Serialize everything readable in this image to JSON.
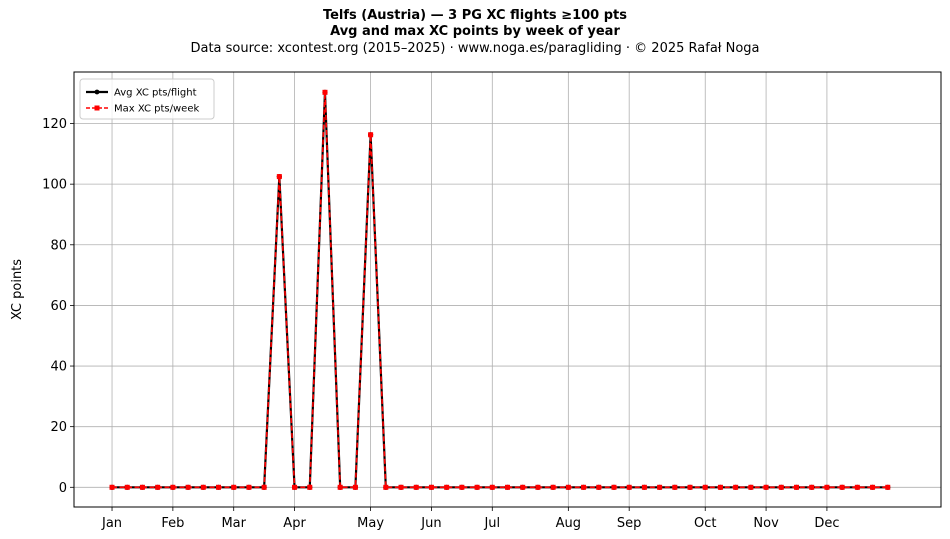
{
  "title_line1": "Telfs (Austria)  —  3 PG XC flights ≥100 pts",
  "title_line2": "Avg and max XC points by week of year",
  "subtitle": "Data source: xcontest.org (2015–2025)  ·  www.noga.es/paragliding  ·  © 2025 Rafał Noga",
  "chart_data": {
    "type": "line",
    "title": "Telfs (Austria)  —  3 PG XC flights ≥100 pts",
    "subtitle": "Avg and max XC points by week of year",
    "xlabel": "",
    "ylabel": "XC points",
    "x_ticks": [
      {
        "label": "Jan",
        "week": 1
      },
      {
        "label": "Feb",
        "week": 5
      },
      {
        "label": "Mar",
        "week": 9
      },
      {
        "label": "Apr",
        "week": 13
      },
      {
        "label": "May",
        "week": 18
      },
      {
        "label": "Jun",
        "week": 22
      },
      {
        "label": "Jul",
        "week": 26
      },
      {
        "label": "Aug",
        "week": 31
      },
      {
        "label": "Sep",
        "week": 35
      },
      {
        "label": "Oct",
        "week": 40
      },
      {
        "label": "Nov",
        "week": 44
      },
      {
        "label": "Dec",
        "week": 48
      }
    ],
    "y_ticks": [
      0,
      20,
      40,
      60,
      80,
      100,
      120
    ],
    "xlim": [
      -1.5,
      55.5
    ],
    "ylim": [
      -6.5,
      137
    ],
    "grid": true,
    "legend_position": "top-left",
    "x": [
      1,
      2,
      3,
      4,
      5,
      6,
      7,
      8,
      9,
      10,
      11,
      12,
      13,
      14,
      15,
      16,
      17,
      18,
      19,
      20,
      21,
      22,
      23,
      24,
      25,
      26,
      27,
      28,
      29,
      30,
      31,
      32,
      33,
      34,
      35,
      36,
      37,
      38,
      39,
      40,
      41,
      42,
      43,
      44,
      45,
      46,
      47,
      48,
      49,
      50,
      51,
      52
    ],
    "series": [
      {
        "name": "Avg XC pts/flight",
        "color": "#000000",
        "style": "solid",
        "marker": "circle",
        "values": [
          0,
          0,
          0,
          0,
          0,
          0,
          0,
          0,
          0,
          0,
          0,
          102.5,
          0,
          0,
          130.3,
          0,
          0,
          116.3,
          0,
          0,
          0,
          0,
          0,
          0,
          0,
          0,
          0,
          0,
          0,
          0,
          0,
          0,
          0,
          0,
          0,
          0,
          0,
          0,
          0,
          0,
          0,
          0,
          0,
          0,
          0,
          0,
          0,
          0,
          0,
          0,
          0,
          0
        ]
      },
      {
        "name": "Max XC pts/week",
        "color": "#ff0000",
        "style": "dashed",
        "marker": "square",
        "values": [
          0,
          0,
          0,
          0,
          0,
          0,
          0,
          0,
          0,
          0,
          0,
          102.5,
          0,
          0,
          130.3,
          0,
          0,
          116.3,
          0,
          0,
          0,
          0,
          0,
          0,
          0,
          0,
          0,
          0,
          0,
          0,
          0,
          0,
          0,
          0,
          0,
          0,
          0,
          0,
          0,
          0,
          0,
          0,
          0,
          0,
          0,
          0,
          0,
          0,
          0,
          0,
          0,
          0
        ]
      }
    ]
  }
}
